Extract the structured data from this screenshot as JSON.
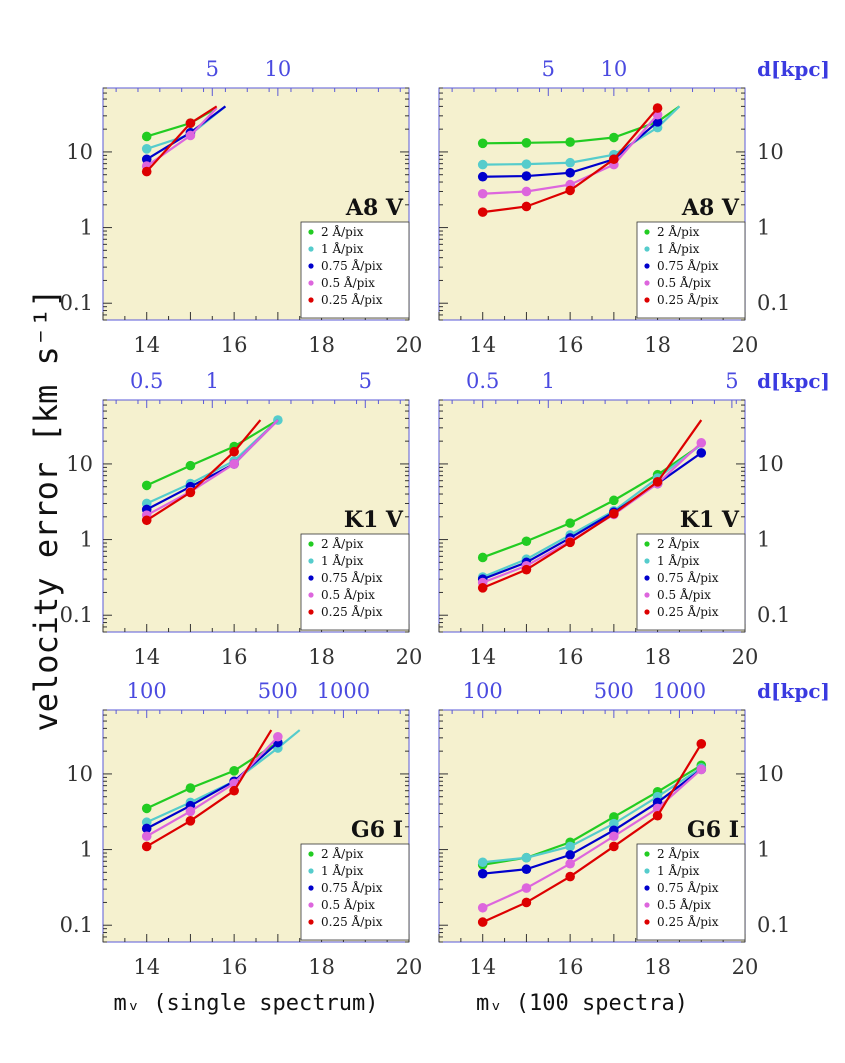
{
  "chart_data": {
    "type": "line",
    "y_axis_label": "velocity error [km s⁻¹]",
    "y_scale": "log",
    "ylim": [
      0.06,
      70
    ],
    "xlim": [
      13,
      20
    ],
    "x_ticks": [
      "14",
      "16",
      "18",
      "20"
    ],
    "y_ticks": [
      {
        "value": 0.1,
        "label": "0.1"
      },
      {
        "value": 1,
        "label": "1"
      },
      {
        "value": 10,
        "label": "10"
      }
    ],
    "top_axis_unit": "d[kpc]",
    "legend": [
      {
        "name": "2 Å/pix",
        "color": "#22cc22"
      },
      {
        "name": "1 Å/pix",
        "color": "#55cccc"
      },
      {
        "name": "0.75 Å/pix",
        "color": "#0000cc"
      },
      {
        "name": "0.5 Å/pix",
        "color": "#dd66dd"
      },
      {
        "name": "0.25 Å/pix",
        "color": "#dd0000"
      }
    ],
    "panels": [
      {
        "id": "a8v-single",
        "row": 0,
        "col": 0,
        "star_type": "A8 V",
        "xlabel": "",
        "top_ticks": [
          {
            "x": 15.5,
            "label": "5"
          },
          {
            "x": 17,
            "label": "10"
          }
        ],
        "show_unit": false,
        "series": [
          {
            "name": "2 Å/pix",
            "x": [
              14,
              15
            ],
            "y": [
              16,
              24
            ],
            "tail": [
              15.6,
              38
            ]
          },
          {
            "name": "1 Å/pix",
            "x": [
              14,
              15
            ],
            "y": [
              11,
              17
            ],
            "tail": [
              15.8,
              40
            ]
          },
          {
            "name": "0.75 Å/pix",
            "x": [
              14,
              15
            ],
            "y": [
              8,
              18
            ],
            "tail": [
              15.8,
              40
            ]
          },
          {
            "name": "0.5 Å/pix",
            "x": [
              14,
              15
            ],
            "y": [
              6.5,
              16.5
            ],
            "tail": [
              15.6,
              38
            ]
          },
          {
            "name": "0.25 Å/pix",
            "x": [
              14,
              15
            ],
            "y": [
              5.5,
              24
            ],
            "tail": [
              15.6,
              40
            ]
          }
        ]
      },
      {
        "id": "a8v-100",
        "row": 0,
        "col": 1,
        "star_type": "A8 V",
        "xlabel": "",
        "top_ticks": [
          {
            "x": 15.5,
            "label": "5"
          },
          {
            "x": 17,
            "label": "10"
          }
        ],
        "show_unit": true,
        "series": [
          {
            "name": "2 Å/pix",
            "x": [
              14,
              15,
              16,
              17,
              18
            ],
            "y": [
              13,
              13.2,
              13.5,
              15.5,
              25
            ],
            "tail": [
              18.5,
              40
            ]
          },
          {
            "name": "1 Å/pix",
            "x": [
              14,
              15,
              16,
              17,
              18
            ],
            "y": [
              6.8,
              6.9,
              7.2,
              9.2,
              21
            ],
            "tail": [
              18.5,
              40
            ]
          },
          {
            "name": "0.75 Å/pix",
            "x": [
              14,
              15,
              16,
              17,
              18
            ],
            "y": [
              4.7,
              4.8,
              5.3,
              8.0,
              25
            ],
            "tail": null
          },
          {
            "name": "0.5 Å/pix",
            "x": [
              14,
              15,
              16,
              17,
              18
            ],
            "y": [
              2.8,
              3.0,
              3.7,
              6.8,
              31
            ],
            "tail": null
          },
          {
            "name": "0.25 Å/pix",
            "x": [
              14,
              15,
              16,
              17,
              18
            ],
            "y": [
              1.6,
              1.9,
              3.1,
              8.0,
              38
            ],
            "tail": null
          }
        ]
      },
      {
        "id": "k1v-single",
        "row": 1,
        "col": 0,
        "star_type": "K1 V",
        "xlabel": "",
        "top_ticks": [
          {
            "x": 14,
            "label": "0.5"
          },
          {
            "x": 15.5,
            "label": "1"
          },
          {
            "x": 19,
            "label": "5"
          }
        ],
        "show_unit": false,
        "series": [
          {
            "name": "2 Å/pix",
            "x": [
              14,
              15,
              16
            ],
            "y": [
              5.2,
              9.5,
              17
            ],
            "tail": [
              17,
              38
            ]
          },
          {
            "name": "1 Å/pix",
            "x": [
              14,
              15,
              16,
              17
            ],
            "y": [
              3.0,
              5.5,
              11,
              38
            ],
            "tail": null
          },
          {
            "name": "0.75 Å/pix",
            "x": [
              14,
              15,
              16
            ],
            "y": [
              2.5,
              5.0,
              10
            ],
            "tail": [
              17,
              38
            ]
          },
          {
            "name": "0.5 Å/pix",
            "x": [
              14,
              15,
              16
            ],
            "y": [
              2.1,
              4.3,
              10
            ],
            "tail": [
              17,
              38
            ]
          },
          {
            "name": "0.25 Å/pix",
            "x": [
              14,
              15,
              16
            ],
            "y": [
              1.8,
              4.2,
              14.5
            ],
            "tail": [
              16.6,
              38
            ]
          }
        ]
      },
      {
        "id": "k1v-100",
        "row": 1,
        "col": 1,
        "star_type": "K1 V",
        "xlabel": "",
        "top_ticks": [
          {
            "x": 14,
            "label": "0.5"
          },
          {
            "x": 15.5,
            "label": "1"
          },
          {
            "x": 19.7,
            "label": "5"
          }
        ],
        "show_unit": true,
        "series": [
          {
            "name": "2 Å/pix",
            "x": [
              14,
              15,
              16,
              17,
              18
            ],
            "y": [
              0.58,
              0.95,
              1.65,
              3.3,
              7.2
            ],
            "tail": [
              19,
              18
            ]
          },
          {
            "name": "1 Å/pix",
            "x": [
              14,
              15,
              16,
              17,
              18
            ],
            "y": [
              0.32,
              0.55,
              1.15,
              2.4,
              6.5
            ],
            "tail": [
              19,
              18
            ]
          },
          {
            "name": "0.75 Å/pix",
            "x": [
              14,
              15,
              16,
              17,
              18,
              19
            ],
            "y": [
              0.3,
              0.5,
              1.05,
              2.3,
              5.5,
              14
            ],
            "tail": null
          },
          {
            "name": "0.5 Å/pix",
            "x": [
              14,
              15,
              16,
              17,
              18,
              19
            ],
            "y": [
              0.27,
              0.45,
              0.95,
              2.15,
              5.5,
              19
            ],
            "tail": null
          },
          {
            "name": "0.25 Å/pix",
            "x": [
              14,
              15,
              16,
              17,
              18
            ],
            "y": [
              0.23,
              0.4,
              0.92,
              2.2,
              5.8
            ],
            "tail": [
              19,
              38
            ]
          }
        ]
      },
      {
        "id": "g6i-single",
        "row": 2,
        "col": 0,
        "star_type": "G6 I",
        "xlabel": "mᵥ (single spectrum)",
        "top_ticks": [
          {
            "x": 14,
            "label": "100"
          },
          {
            "x": 17,
            "label": "500"
          },
          {
            "x": 18.5,
            "label": "1000"
          }
        ],
        "show_unit": false,
        "series": [
          {
            "name": "2 Å/pix",
            "x": [
              14,
              15,
              16
            ],
            "y": [
              3.5,
              6.5,
              11
            ],
            "tail": [
              17,
              26
            ]
          },
          {
            "name": "1 Å/pix",
            "x": [
              14,
              15,
              16,
              17
            ],
            "y": [
              2.3,
              4.2,
              8.0,
              22
            ],
            "tail": [
              17.5,
              38
            ]
          },
          {
            "name": "0.75 Å/pix",
            "x": [
              14,
              15,
              16,
              17
            ],
            "y": [
              1.9,
              3.8,
              8.0,
              26
            ],
            "tail": null
          },
          {
            "name": "0.5 Å/pix",
            "x": [
              14,
              15,
              16,
              17
            ],
            "y": [
              1.5,
              3.2,
              7.5,
              31
            ],
            "tail": null
          },
          {
            "name": "0.25 Å/pix",
            "x": [
              14,
              15,
              16
            ],
            "y": [
              1.1,
              2.4,
              6.0
            ],
            "tail": [
              16.85,
              38
            ]
          }
        ]
      },
      {
        "id": "g6i-100",
        "row": 2,
        "col": 1,
        "star_type": "G6 I",
        "xlabel": "mᵥ (100 spectra)",
        "top_ticks": [
          {
            "x": 14,
            "label": "100"
          },
          {
            "x": 17,
            "label": "500"
          },
          {
            "x": 18.5,
            "label": "1000"
          }
        ],
        "show_unit": true,
        "series": [
          {
            "name": "2 Å/pix",
            "x": [
              14,
              15,
              16,
              17,
              18,
              19
            ],
            "y": [
              0.63,
              0.78,
              1.25,
              2.7,
              5.8,
              13
            ],
            "tail": null
          },
          {
            "name": "1 Å/pix",
            "x": [
              14,
              15,
              16,
              17,
              18,
              19
            ],
            "y": [
              0.68,
              0.78,
              1.1,
              2.2,
              5.0,
              12
            ],
            "tail": null
          },
          {
            "name": "0.75 Å/pix",
            "x": [
              14,
              15,
              16,
              17,
              18,
              19
            ],
            "y": [
              0.48,
              0.55,
              0.85,
              1.8,
              4.2,
              11.5
            ],
            "tail": null
          },
          {
            "name": "0.5 Å/pix",
            "x": [
              14,
              15,
              16,
              17,
              18,
              19
            ],
            "y": [
              0.17,
              0.31,
              0.65,
              1.5,
              3.5,
              11.5
            ],
            "tail": null
          },
          {
            "name": "0.25 Å/pix",
            "x": [
              14,
              15,
              16,
              17,
              18,
              19
            ],
            "y": [
              0.11,
              0.2,
              0.44,
              1.1,
              2.8,
              25
            ],
            "tail": null
          }
        ]
      }
    ]
  }
}
